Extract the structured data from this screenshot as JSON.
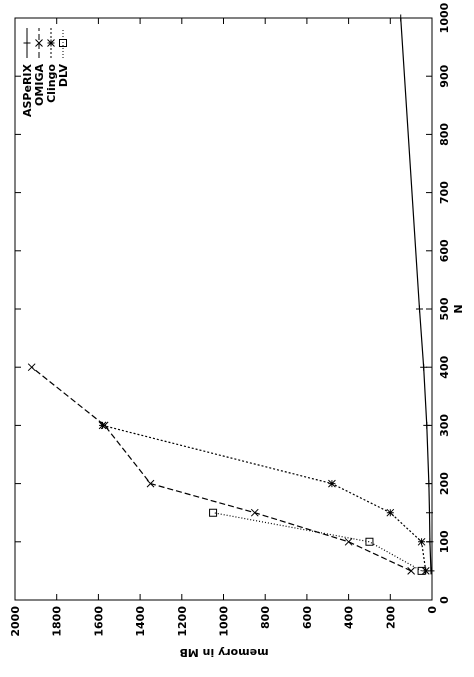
{
  "chart_data": {
    "type": "line",
    "x_label": "N",
    "y_label": "memory in MB",
    "xlim": [
      0,
      1000
    ],
    "xticks": [
      0,
      100,
      200,
      300,
      400,
      500,
      600,
      700,
      800,
      900,
      1000
    ],
    "ylim": [
      0,
      2000
    ],
    "yticks": [
      0,
      200,
      400,
      600,
      800,
      1000,
      1200,
      1400,
      1600,
      1800,
      2000
    ],
    "legend": "top right",
    "rotated": true,
    "series": [
      {
        "name": "ASPeRIX",
        "color": "#000000",
        "marker": "plus",
        "dash": "none",
        "x": [
          50,
          100,
          150,
          200,
          300,
          400,
          500,
          1000
        ],
        "values": [
          5,
          10,
          12,
          15,
          25,
          40,
          60,
          150
        ]
      },
      {
        "name": "OMIGA",
        "color": "#000000",
        "marker": "cross",
        "dash": "6 3",
        "x": [
          50,
          100,
          150,
          200,
          300,
          400
        ],
        "values": [
          100,
          400,
          850,
          1350,
          1570,
          1920
        ]
      },
      {
        "name": "Clingo",
        "color": "#000000",
        "marker": "star",
        "dash": "2 2",
        "x": [
          50,
          100,
          150,
          200,
          300
        ],
        "values": [
          30,
          50,
          200,
          480,
          1580
        ]
      },
      {
        "name": "DLV",
        "color": "#000000",
        "marker": "square",
        "dash": "1 2",
        "x": [
          50,
          100,
          150
        ],
        "values": [
          50,
          300,
          1050
        ]
      }
    ]
  }
}
